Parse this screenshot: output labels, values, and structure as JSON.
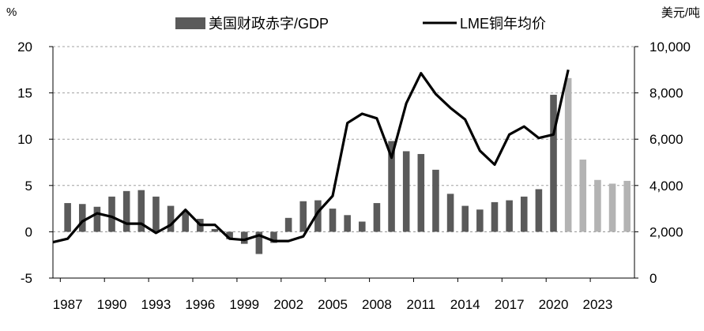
{
  "chart_data": {
    "type": "bar+line",
    "left_axis": {
      "unit_label": "%",
      "ylim": [
        -5,
        20
      ],
      "ticks": [
        "20",
        "15",
        "10",
        "5",
        "0",
        "-5"
      ],
      "tick_values": [
        20,
        15,
        10,
        5,
        0,
        -5
      ]
    },
    "right_axis": {
      "unit_label": "美元/吨",
      "ylim": [
        0,
        10000
      ],
      "ticks": [
        "10,000",
        "8,000",
        "6,000",
        "4,000",
        "2,000",
        "0"
      ],
      "tick_values": [
        10000,
        8000,
        6000,
        4000,
        2000,
        0
      ]
    },
    "x_tick_labels": [
      "1987",
      "1990",
      "1993",
      "1996",
      "1999",
      "2002",
      "2005",
      "2008",
      "2011",
      "2014",
      "2017",
      "2020",
      "2023"
    ],
    "x_tick_years": [
      1987,
      1990,
      1993,
      1996,
      1999,
      2002,
      2005,
      2008,
      2011,
      2014,
      2017,
      2020,
      2023
    ],
    "grid": "dashed horizontal at left-axis major ticks",
    "legend": {
      "placement": "top",
      "items": [
        {
          "label": "美国财政赤字/GDP",
          "symbol": "bar"
        },
        {
          "label": "LME铜年均价",
          "symbol": "line"
        }
      ]
    },
    "colors": {
      "actual_bar": "#5a5a5a",
      "forecast_bar": "#b3b3b3",
      "line": "#000000",
      "grid": "#a0a0a0"
    },
    "series": [
      {
        "name": "美国财政赤字/GDP",
        "type": "bar",
        "axis": "left",
        "x": [
          1987,
          1988,
          1989,
          1990,
          1991,
          1992,
          1993,
          1994,
          1995,
          1996,
          1997,
          1998,
          1999,
          2000,
          2001,
          2002,
          2003,
          2004,
          2005,
          2006,
          2007,
          2008,
          2009,
          2010,
          2011,
          2012,
          2013,
          2014,
          2015,
          2016,
          2017,
          2018,
          2019,
          2020,
          2021,
          2022,
          2023,
          2024,
          2025
        ],
        "values": [
          3.1,
          3.0,
          2.7,
          3.8,
          4.4,
          4.5,
          3.8,
          2.8,
          2.2,
          1.4,
          0.3,
          -0.8,
          -1.3,
          -2.4,
          -1.2,
          1.5,
          3.3,
          3.4,
          2.5,
          1.8,
          1.1,
          3.1,
          9.8,
          8.7,
          8.4,
          6.7,
          4.1,
          2.8,
          2.4,
          3.2,
          3.4,
          3.8,
          4.6,
          14.8,
          16.6,
          7.8,
          5.6,
          5.2,
          5.5
        ],
        "forecast_from": 2021
      },
      {
        "name": "LME铜年均价",
        "type": "line",
        "axis": "right",
        "x": [
          1986,
          1987,
          1988,
          1989,
          1990,
          1991,
          1992,
          1993,
          1994,
          1995,
          1996,
          1997,
          1998,
          1999,
          2000,
          2001,
          2002,
          2003,
          2004,
          2005,
          2006,
          2007,
          2008,
          2009,
          2010,
          2011,
          2012,
          2013,
          2014,
          2015,
          2016,
          2017,
          2018,
          2019,
          2020,
          2021
        ],
        "values": [
          1550,
          1700,
          2450,
          2800,
          2650,
          2350,
          2350,
          1950,
          2300,
          2950,
          2300,
          2300,
          1700,
          1650,
          1850,
          1600,
          1600,
          1800,
          2850,
          3550,
          6700,
          7100,
          6900,
          5200,
          7550,
          8850,
          7950,
          7350,
          6850,
          5500,
          4900,
          6200,
          6550,
          6050,
          6200,
          9000
        ]
      }
    ]
  }
}
